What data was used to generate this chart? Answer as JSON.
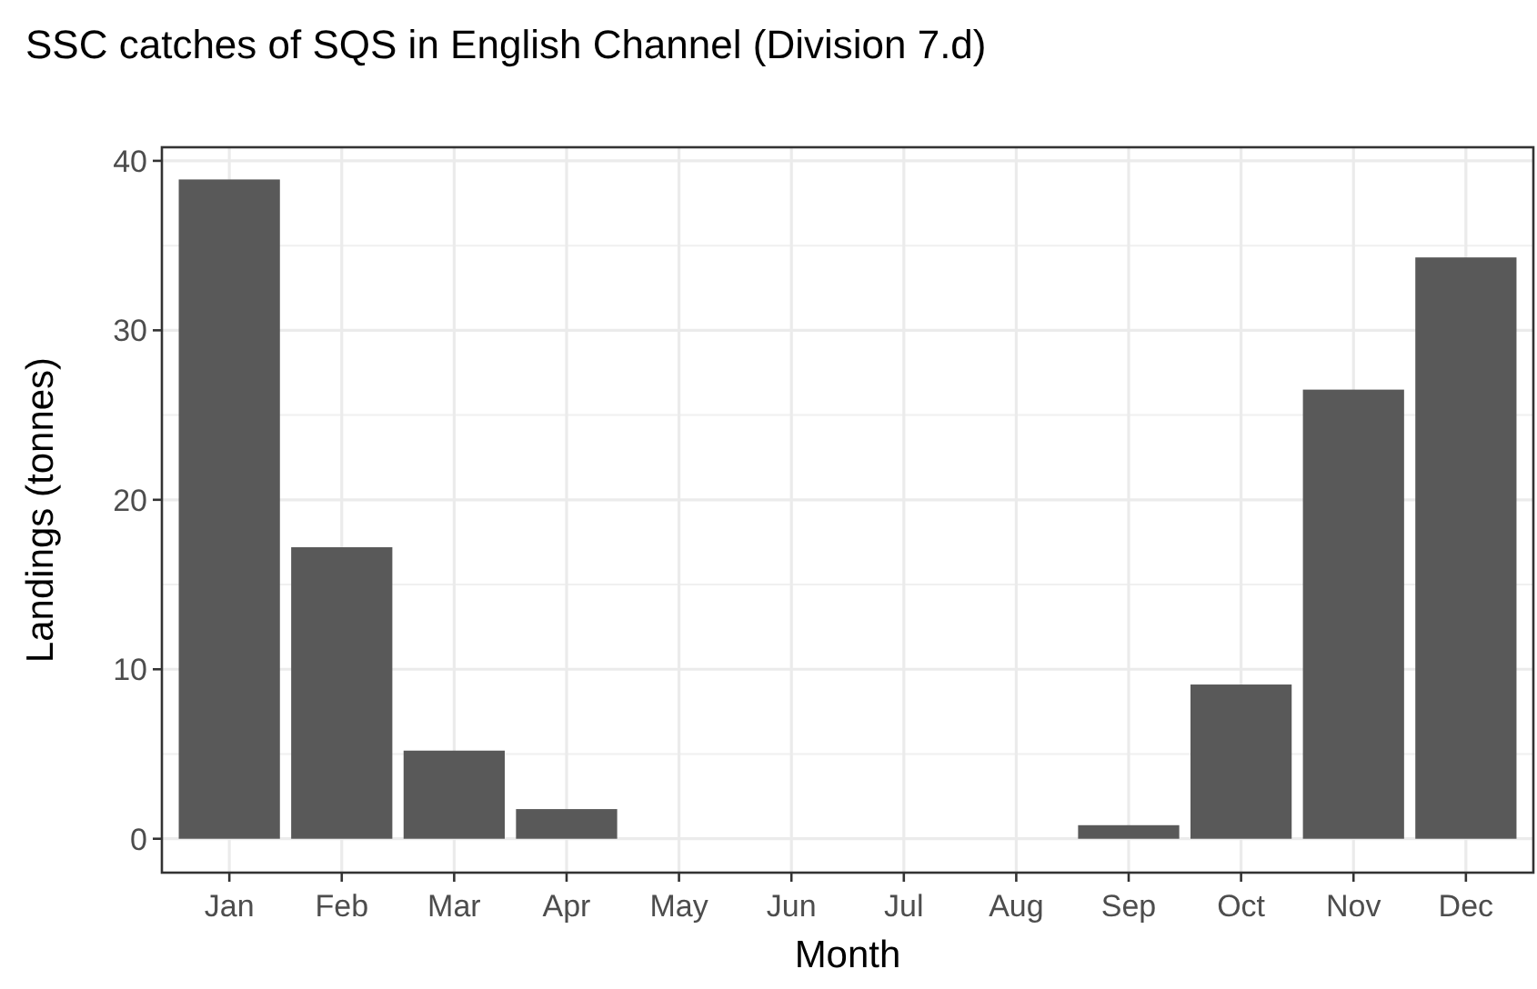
{
  "chart_data": {
    "type": "bar",
    "title": "SSC catches of SQS in English Channel (Division 7.d)",
    "xlabel": "Month",
    "ylabel": "Landings (tonnes)",
    "categories": [
      "Jan",
      "Feb",
      "Mar",
      "Apr",
      "May",
      "Jun",
      "Jul",
      "Aug",
      "Sep",
      "Oct",
      "Nov",
      "Dec"
    ],
    "values": [
      38.9,
      17.2,
      5.2,
      1.75,
      null,
      null,
      null,
      null,
      0.8,
      9.1,
      26.5,
      34.3
    ],
    "color": "#595959",
    "ylim": [
      -2,
      40.8
    ],
    "yticks": [
      0,
      10,
      20,
      30,
      40
    ],
    "grid": true
  }
}
